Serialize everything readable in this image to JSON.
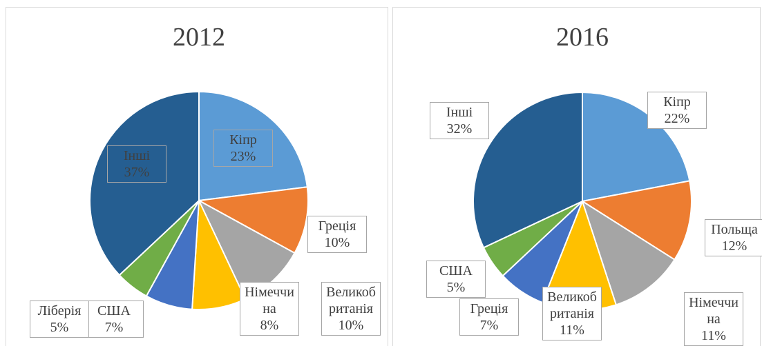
{
  "chart_data": [
    {
      "type": "pie",
      "title": "2012",
      "categories": [
        "Кіпр",
        "Греція",
        "Великобританія",
        "Німеччина",
        "США",
        "Ліберія",
        "Інші"
      ],
      "values": [
        23,
        10,
        10,
        8,
        7,
        5,
        37
      ],
      "value_labels": [
        "23%",
        "10%",
        "10%",
        "8%",
        "7%",
        "5%",
        "37%"
      ],
      "colors": [
        "#5b9bd5",
        "#ed7d31",
        "#a5a5a5",
        "#ffc000",
        "#4472c4",
        "#70ad47",
        "#255e91"
      ]
    },
    {
      "type": "pie",
      "title": "2016",
      "categories": [
        "Кіпр",
        "Польща",
        "Німеччина",
        "Великобританія",
        "Греція",
        "США",
        "Інші"
      ],
      "values": [
        22,
        12,
        11,
        11,
        7,
        5,
        32
      ],
      "value_labels": [
        "22%",
        "12%",
        "11%",
        "11%",
        "7%",
        "5%",
        "32%"
      ],
      "colors": [
        "#5b9bd5",
        "#ed7d31",
        "#a5a5a5",
        "#ffc000",
        "#4472c4",
        "#70ad47",
        "#255e91"
      ]
    }
  ]
}
